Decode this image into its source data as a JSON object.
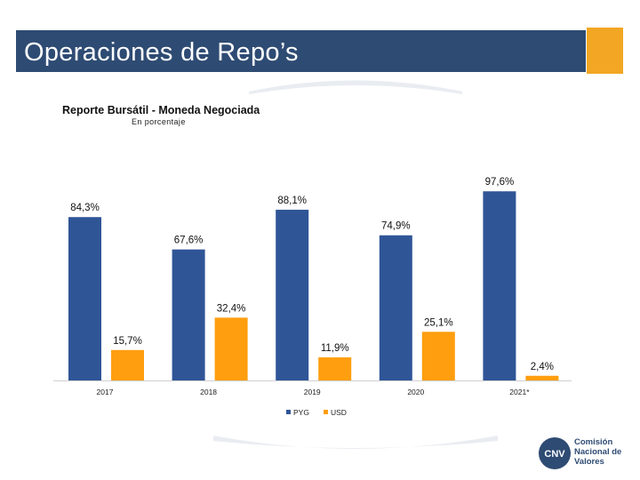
{
  "slide": {
    "title": "Operaciones de Repo’s",
    "accent_color": "#f2a623",
    "title_bar_color": "#2e4b73"
  },
  "chart_data": {
    "type": "bar",
    "title": "Reporte Bursátil - Moneda Negociada",
    "subtitle": "En porcentaje",
    "categories": [
      "2017",
      "2018",
      "2019",
      "2020",
      "2021*"
    ],
    "series": [
      {
        "name": "PYG",
        "values": [
          84.3,
          67.6,
          88.1,
          74.9,
          97.6
        ],
        "labels": [
          "84,3%",
          "67,6%",
          "88,1%",
          "74,9%",
          "97,6%"
        ],
        "color": "#2f5597"
      },
      {
        "name": "USD",
        "values": [
          15.7,
          32.4,
          11.9,
          25.1,
          2.4
        ],
        "labels": [
          "15,7%",
          "32,4%",
          "11,9%",
          "25,1%",
          "2,4%"
        ],
        "color": "#ff9e0f"
      }
    ],
    "ylim": [
      0,
      100
    ],
    "grid": false,
    "legend_position": "bottom"
  },
  "logo": {
    "abbr": "CNV",
    "lines": [
      "Comisión",
      "Nacional de",
      "Valores"
    ],
    "color": "#2e4b73"
  }
}
